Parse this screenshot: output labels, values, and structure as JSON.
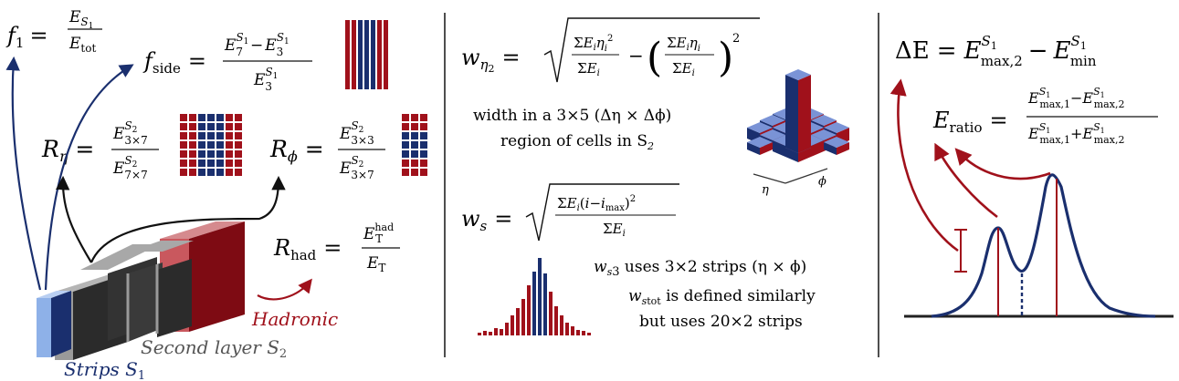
{
  "colors": {
    "navy": "#1a2f6e",
    "crimson": "#a0111b",
    "light_blue": "#8eb1e8",
    "dark_gray": "#333333",
    "mid_gray": "#9a9a9a",
    "pink": "#c9585e",
    "divider": "#222222"
  },
  "panel_left": {
    "f1": {
      "lhs": "f",
      "lhs_sub": "1",
      "num": "E",
      "num_sub": "S",
      "num_sub_sub": "1",
      "den": "E",
      "den_sub": "tot"
    },
    "fside": {
      "lhs": "f",
      "lhs_sub": "side",
      "num_a": "E",
      "num_a_sub": "7",
      "num_a_sup": "S",
      "num_a_sup_sub": "1",
      "minus": "−",
      "num_b": "E",
      "num_b_sub": "3",
      "num_b_sup": "S",
      "num_b_sup_sub": "1",
      "den": "E",
      "den_sub": "3",
      "den_sup": "S",
      "den_sup_sub": "1"
    },
    "reta": {
      "lhs": "R",
      "lhs_sub": "η",
      "num": "E",
      "num_sub": "3×7",
      "num_sup": "S",
      "num_sup_sub": "2",
      "den": "E",
      "den_sub": "7×7",
      "den_sup": "S",
      "den_sup_sub": "2"
    },
    "rphi": {
      "lhs": "R",
      "lhs_sub": "ϕ",
      "num": "E",
      "num_sub": "3×3",
      "num_sup": "S",
      "num_sup_sub": "2",
      "den": "E",
      "den_sub": "3×7",
      "den_sup": "S",
      "den_sup_sub": "2"
    },
    "rhad": {
      "lhs": "R",
      "lhs_sub": "had",
      "num": "E",
      "num_sub": "T",
      "num_sup": "had",
      "den": "E",
      "den_sub": "T"
    },
    "label_hadronic": "Hadronic",
    "label_second_layer": "Second layer S",
    "label_second_layer_sub": "2",
    "label_strips": "Strips S",
    "label_strips_sub": "1",
    "equals": "="
  },
  "panel_middle": {
    "w_eta2": {
      "lhs": "w",
      "lhs_sub": "η",
      "lhs_sub_sub": "2"
    },
    "width_caption_line1": "width in a 3×5 (Δη × Δϕ)",
    "width_caption_line2": "region of cells in S",
    "width_caption_line2_sub": "2",
    "axis_eta": "η",
    "axis_phi": "ϕ",
    "w_s": {
      "lhs": "w",
      "lhs_sub": "s"
    },
    "ws3_caption_a": "w",
    "ws3_caption_sub": "s",
    "ws3_caption_num": "3",
    "ws3_caption_b": " uses 3×2 strips (η × ϕ)",
    "wstot_caption_a": "w",
    "wstot_caption_sub": "s",
    "wstot_caption_num": "tot",
    "wstot_caption_b": " is defined similarly",
    "wstot_caption_line2": "but uses 20×2 strips"
  },
  "panel_right": {
    "delta_e": {
      "lhs": "ΔE",
      "equals": "=",
      "a": "E",
      "a_sub": "max,2",
      "a_sup": "S",
      "a_sup_sub": "1",
      "minus": "−",
      "b": "E",
      "b_sub": "min",
      "b_sup": "S",
      "b_sup_sub": "1"
    },
    "e_ratio": {
      "lhs": "E",
      "lhs_sub": "ratio",
      "equals": "=",
      "num_a_sub": "max,1",
      "num_b_sub": "max,2",
      "den_a_sub": "max,1",
      "den_b_sub": "max,2",
      "sup": "S",
      "sup_sub": "1",
      "minus": "−",
      "plus": "+"
    }
  }
}
